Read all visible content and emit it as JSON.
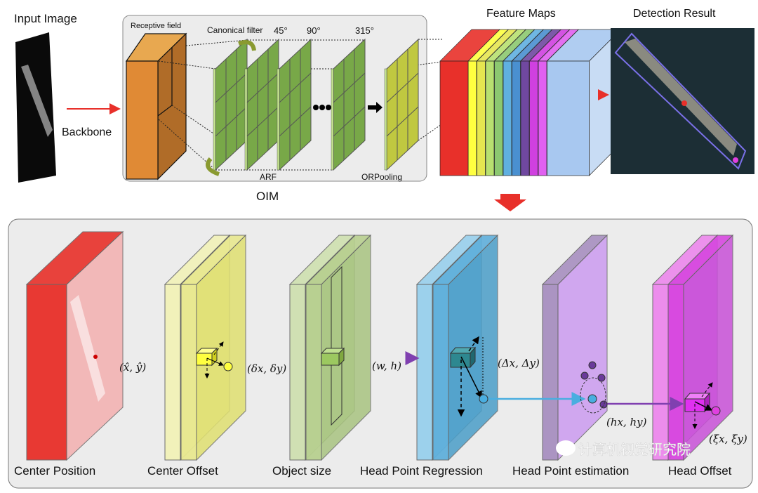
{
  "top": {
    "input_image_label": "Input Image",
    "backbone_label": "Backbone",
    "oim": {
      "title": "OIM",
      "receptive_field_label": "Receptive field",
      "canonical_filter_label": "Canonical filter",
      "angles": [
        "45°",
        "90°",
        "315°"
      ],
      "arf_label": "ARF",
      "orpooling_label": "ORPooling"
    },
    "feature_maps_label": "Feature Maps",
    "detection_result_label": "Detection Result",
    "feature_map_colors": [
      "#e8302a",
      "#ffff40",
      "#e6e650",
      "#b8e070",
      "#8cc870",
      "#60b0e0",
      "#4a90d0",
      "#7048a0",
      "#d040e0",
      "#e060f0",
      "#a8c8f0"
    ]
  },
  "bottom": {
    "stages": [
      {
        "label": "Center Position",
        "math": "(x̂, ŷ)",
        "color": "#e8302a"
      },
      {
        "label": "Center Offset",
        "math": "(δx, δy)",
        "color": "#e8e890"
      },
      {
        "label": "Object size",
        "math": "(w, h)",
        "color": "#b8d090"
      },
      {
        "label": "Head Point Regression",
        "math": "(Δx, Δy)",
        "color": "#60b0dc"
      },
      {
        "label": "Head Point estimation",
        "math": "(hx, hy)",
        "color": "#cc9cf0"
      },
      {
        "label": "Head Offset",
        "math": "(ξx, ξy)",
        "color": "#d848e0"
      }
    ]
  },
  "watermark": "计算机视觉研究院"
}
